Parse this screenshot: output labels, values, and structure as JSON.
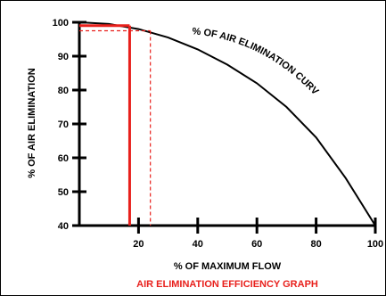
{
  "chart_data": {
    "type": "line",
    "title": "AIR ELIMINATION EFFICIENCY GRAPH",
    "xlabel": "% OF MAXIMUM FLOW",
    "ylabel": "% OF AIR ELIMINATION",
    "xlim": [
      0,
      100
    ],
    "ylim": [
      40,
      100
    ],
    "x_ticks": [
      "20",
      "40",
      "60",
      "80",
      "100"
    ],
    "y_ticks": [
      "40",
      "50",
      "60",
      "70",
      "80",
      "90",
      "100"
    ],
    "grid": false,
    "series": [
      {
        "name": "% OF AIR ELIMINATION CURVE",
        "x": [
          0,
          10,
          20,
          30,
          40,
          50,
          60,
          70,
          80,
          90,
          95,
          100
        ],
        "y": [
          100,
          99.5,
          98.0,
          95.5,
          92.0,
          87.5,
          82.0,
          75.0,
          66.0,
          54.0,
          47.0,
          40.0
        ]
      }
    ],
    "annotations": {
      "curve_label": "% OF AIR ELIMINATION CURVE",
      "solid_marker": {
        "x": 17,
        "y": 99
      },
      "dashed_marker": {
        "x": 24,
        "y": 97.5
      }
    },
    "colors": {
      "axis": "#000000",
      "curve": "#000000",
      "marker": "#e8201c",
      "title": "#e8201c"
    }
  }
}
